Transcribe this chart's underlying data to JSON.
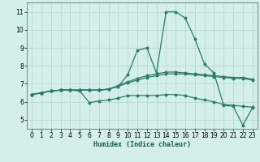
{
  "title": "",
  "xlabel": "Humidex (Indice chaleur)",
  "background_color": "#d4eeeb",
  "grid_color": "#b8d8d4",
  "line_color": "#2a7a6e",
  "xlim": [
    -0.5,
    23.5
  ],
  "ylim": [
    4.5,
    11.5
  ],
  "xticks": [
    0,
    1,
    2,
    3,
    4,
    5,
    6,
    7,
    8,
    9,
    10,
    11,
    12,
    13,
    14,
    15,
    16,
    17,
    18,
    19,
    20,
    21,
    22,
    23
  ],
  "yticks": [
    5,
    6,
    7,
    8,
    9,
    10,
    11
  ],
  "series": [
    [
      6.4,
      6.5,
      6.6,
      6.65,
      6.65,
      6.6,
      5.95,
      6.05,
      6.1,
      6.2,
      6.35,
      6.35,
      6.35,
      6.35,
      6.4,
      6.4,
      6.35,
      6.2,
      6.1,
      6.0,
      5.85,
      5.8,
      5.75,
      5.7
    ],
    [
      6.4,
      6.5,
      6.6,
      6.65,
      6.65,
      6.65,
      6.65,
      6.65,
      6.7,
      6.85,
      7.05,
      7.2,
      7.35,
      7.45,
      7.55,
      7.55,
      7.55,
      7.5,
      7.45,
      7.4,
      7.35,
      7.3,
      7.3,
      7.2
    ],
    [
      6.4,
      6.5,
      6.6,
      6.65,
      6.65,
      6.65,
      6.65,
      6.65,
      6.7,
      6.85,
      7.5,
      8.85,
      9.0,
      7.6,
      11.0,
      11.0,
      10.65,
      9.5,
      8.1,
      7.6,
      5.8,
      5.75,
      4.7,
      5.65
    ],
    [
      6.4,
      6.5,
      6.6,
      6.65,
      6.65,
      6.65,
      6.65,
      6.65,
      6.7,
      6.9,
      7.1,
      7.3,
      7.45,
      7.55,
      7.65,
      7.65,
      7.6,
      7.55,
      7.5,
      7.45,
      7.4,
      7.35,
      7.35,
      7.25
    ]
  ]
}
